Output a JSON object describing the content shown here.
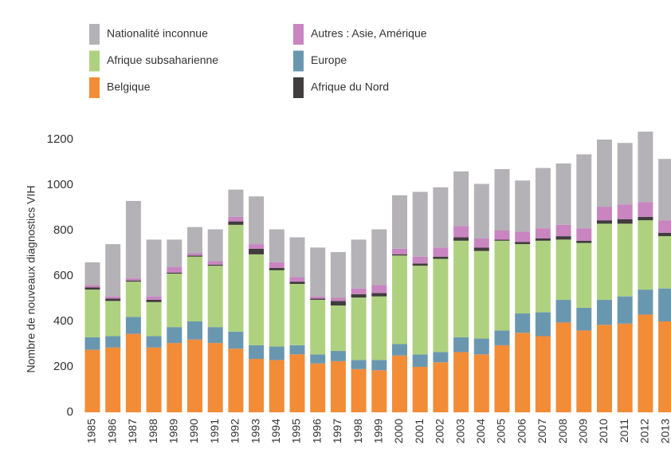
{
  "chart_data": {
    "type": "stacked_bar",
    "y_label": "Nombre de nouveaux diagnostics VIH",
    "categories": [
      "1985",
      "1986",
      "1987",
      "1988",
      "1989",
      "1990",
      "1991",
      "1992",
      "1993",
      "1994",
      "1995",
      "1996",
      "1997",
      "1998",
      "1999",
      "2000",
      "2001",
      "2002",
      "2003",
      "2004",
      "2005",
      "2006",
      "2007",
      "2008",
      "2009",
      "2010",
      "2011",
      "2012",
      "2013"
    ],
    "series": [
      {
        "name": "Belgique",
        "color": "#f28c37",
        "values": [
          275,
          285,
          345,
          285,
          305,
          320,
          305,
          280,
          235,
          230,
          255,
          215,
          225,
          190,
          185,
          250,
          200,
          220,
          265,
          255,
          295,
          350,
          335,
          395,
          360,
          385,
          390,
          430,
          400
        ]
      },
      {
        "name": "Europe",
        "color": "#6a97b0",
        "values": [
          55,
          50,
          75,
          50,
          70,
          80,
          70,
          75,
          60,
          60,
          40,
          40,
          45,
          40,
          45,
          50,
          55,
          45,
          65,
          70,
          65,
          85,
          105,
          100,
          100,
          110,
          120,
          110,
          145
        ]
      },
      {
        "name": "Afrique subsaharienne",
        "color": "#aed17f",
        "values": [
          210,
          155,
          155,
          150,
          235,
          285,
          270,
          470,
          400,
          335,
          270,
          240,
          200,
          275,
          280,
          390,
          390,
          410,
          425,
          385,
          395,
          305,
          315,
          265,
          285,
          335,
          320,
          305,
          230
        ]
      },
      {
        "name": "Afrique du Nord",
        "color": "#413c3e",
        "values": [
          10,
          10,
          5,
          10,
          5,
          5,
          5,
          15,
          25,
          10,
          10,
          5,
          20,
          15,
          15,
          5,
          10,
          10,
          15,
          15,
          5,
          10,
          10,
          15,
          10,
          15,
          20,
          15,
          15
        ]
      },
      {
        "name": "Autres : Asie, Amérique",
        "color": "#c985c0",
        "values": [
          10,
          10,
          10,
          15,
          25,
          10,
          15,
          20,
          20,
          25,
          20,
          10,
          15,
          25,
          35,
          25,
          30,
          40,
          50,
          40,
          40,
          45,
          45,
          50,
          55,
          60,
          65,
          65,
          55
        ]
      },
      {
        "name": "Nationalité inconnue",
        "color": "#b4b2b6",
        "values": [
          100,
          230,
          340,
          250,
          120,
          115,
          140,
          120,
          210,
          145,
          175,
          215,
          200,
          215,
          245,
          235,
          285,
          265,
          240,
          240,
          270,
          225,
          265,
          270,
          325,
          295,
          270,
          310,
          270
        ]
      }
    ],
    "ylim": [
      0,
      1200
    ],
    "yticks": [
      0,
      200,
      400,
      600,
      800,
      1000,
      1200
    ],
    "grid": false
  }
}
